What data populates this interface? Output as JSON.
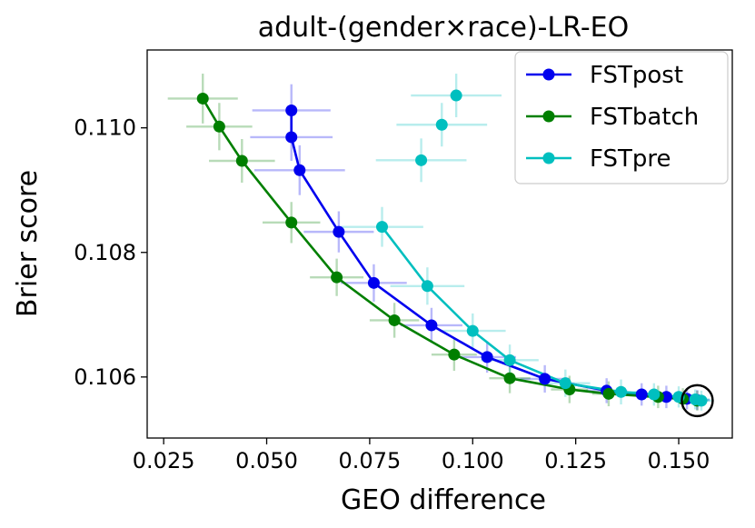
{
  "chart_data": {
    "type": "line",
    "title": "adult-(gender×race)-LR-EO",
    "xlabel": "GEO difference",
    "ylabel": "Brier score",
    "xlim": [
      0.021,
      0.163
    ],
    "ylim": [
      0.10502,
      0.11125
    ],
    "xticks": [
      "0.025",
      "0.050",
      "0.075",
      "0.100",
      "0.125",
      "0.150"
    ],
    "xtick_values": [
      0.025,
      0.05,
      0.075,
      0.1,
      0.125,
      0.15
    ],
    "yticks": [
      "0.106",
      "0.108",
      "0.110"
    ],
    "ytick_values": [
      0.106,
      0.108,
      0.11
    ],
    "legend_position": "top-right",
    "grid": false,
    "series": [
      {
        "name": "FSTpost",
        "color": "#0000ee",
        "points": [
          {
            "x": 0.056,
            "y": 0.11028,
            "xerr": 0.0095,
            "yerr": 0.00042
          },
          {
            "x": 0.056,
            "y": 0.10985,
            "xerr": 0.01,
            "yerr": 0.00038
          },
          {
            "x": 0.058,
            "y": 0.10932,
            "xerr": 0.011,
            "yerr": 0.0004
          },
          {
            "x": 0.0675,
            "y": 0.10833,
            "xerr": 0.0085,
            "yerr": 0.00033
          },
          {
            "x": 0.076,
            "y": 0.10751,
            "xerr": 0.008,
            "yerr": 0.0003
          },
          {
            "x": 0.09,
            "y": 0.10683,
            "xerr": 0.0075,
            "yerr": 0.00028
          },
          {
            "x": 0.1035,
            "y": 0.10632,
            "xerr": 0.007,
            "yerr": 0.00025
          },
          {
            "x": 0.1175,
            "y": 0.10597,
            "xerr": 0.006,
            "yerr": 0.00022
          },
          {
            "x": 0.1325,
            "y": 0.10578,
            "xerr": 0.005,
            "yerr": 0.0002
          },
          {
            "x": 0.141,
            "y": 0.10572,
            "xerr": 0.0045,
            "yerr": 0.00018
          },
          {
            "x": 0.147,
            "y": 0.10568,
            "xerr": 0.004,
            "yerr": 0.00018
          },
          {
            "x": 0.152,
            "y": 0.10565,
            "xerr": 0.0035,
            "yerr": 0.00017
          },
          {
            "x": 0.1545,
            "y": 0.10563,
            "xerr": 0.003,
            "yerr": 0.00016
          }
        ]
      },
      {
        "name": "FSTbatch",
        "color": "#007f00",
        "points": [
          {
            "x": 0.0345,
            "y": 0.11047,
            "xerr": 0.0085,
            "yerr": 0.0004
          },
          {
            "x": 0.0385,
            "y": 0.11002,
            "xerr": 0.008,
            "yerr": 0.00038
          },
          {
            "x": 0.044,
            "y": 0.10947,
            "xerr": 0.008,
            "yerr": 0.00035
          },
          {
            "x": 0.056,
            "y": 0.10848,
            "xerr": 0.007,
            "yerr": 0.00033
          },
          {
            "x": 0.067,
            "y": 0.1076,
            "xerr": 0.0065,
            "yerr": 0.0003
          },
          {
            "x": 0.081,
            "y": 0.10691,
            "xerr": 0.006,
            "yerr": 0.00028
          },
          {
            "x": 0.0955,
            "y": 0.10636,
            "xerr": 0.0055,
            "yerr": 0.00026
          },
          {
            "x": 0.109,
            "y": 0.10598,
            "xerr": 0.005,
            "yerr": 0.00024
          },
          {
            "x": 0.1235,
            "y": 0.1058,
            "xerr": 0.0045,
            "yerr": 0.00022
          },
          {
            "x": 0.133,
            "y": 0.10573,
            "xerr": 0.004,
            "yerr": 0.0002
          },
          {
            "x": 0.145,
            "y": 0.10568,
            "xerr": 0.0035,
            "yerr": 0.00018
          },
          {
            "x": 0.151,
            "y": 0.10565,
            "xerr": 0.003,
            "yerr": 0.00017
          },
          {
            "x": 0.1545,
            "y": 0.10562,
            "xerr": 0.0025,
            "yerr": 0.00016
          }
        ]
      },
      {
        "name": "FSTpre",
        "color": "#00bfbf",
        "points": [
          {
            "x": 0.096,
            "y": 0.11052,
            "xerr": 0.011,
            "yerr": 0.00035,
            "connected": false
          },
          {
            "x": 0.0925,
            "y": 0.11005,
            "xerr": 0.011,
            "yerr": 0.00035,
            "connected": false
          },
          {
            "x": 0.0875,
            "y": 0.10948,
            "xerr": 0.011,
            "yerr": 0.00035,
            "connected": false
          },
          {
            "x": 0.078,
            "y": 0.10841,
            "xerr": 0.01,
            "yerr": 0.00032
          },
          {
            "x": 0.089,
            "y": 0.10746,
            "xerr": 0.009,
            "yerr": 0.0003
          },
          {
            "x": 0.1,
            "y": 0.10674,
            "xerr": 0.008,
            "yerr": 0.00028
          },
          {
            "x": 0.109,
            "y": 0.10627,
            "xerr": 0.007,
            "yerr": 0.00025
          },
          {
            "x": 0.1225,
            "y": 0.1059,
            "xerr": 0.006,
            "yerr": 0.00022
          },
          {
            "x": 0.136,
            "y": 0.10576,
            "xerr": 0.005,
            "yerr": 0.0002
          },
          {
            "x": 0.144,
            "y": 0.10572,
            "xerr": 0.0045,
            "yerr": 0.00018
          },
          {
            "x": 0.15,
            "y": 0.10568,
            "xerr": 0.004,
            "yerr": 0.00017
          },
          {
            "x": 0.154,
            "y": 0.10564,
            "xerr": 0.0035,
            "yerr": 0.00016
          },
          {
            "x": 0.1555,
            "y": 0.10562,
            "xerr": 0.003,
            "yerr": 0.00016
          }
        ]
      }
    ],
    "highlight": {
      "x": 0.1545,
      "y": 0.10562,
      "shape": "circle",
      "color": "#000000"
    }
  }
}
